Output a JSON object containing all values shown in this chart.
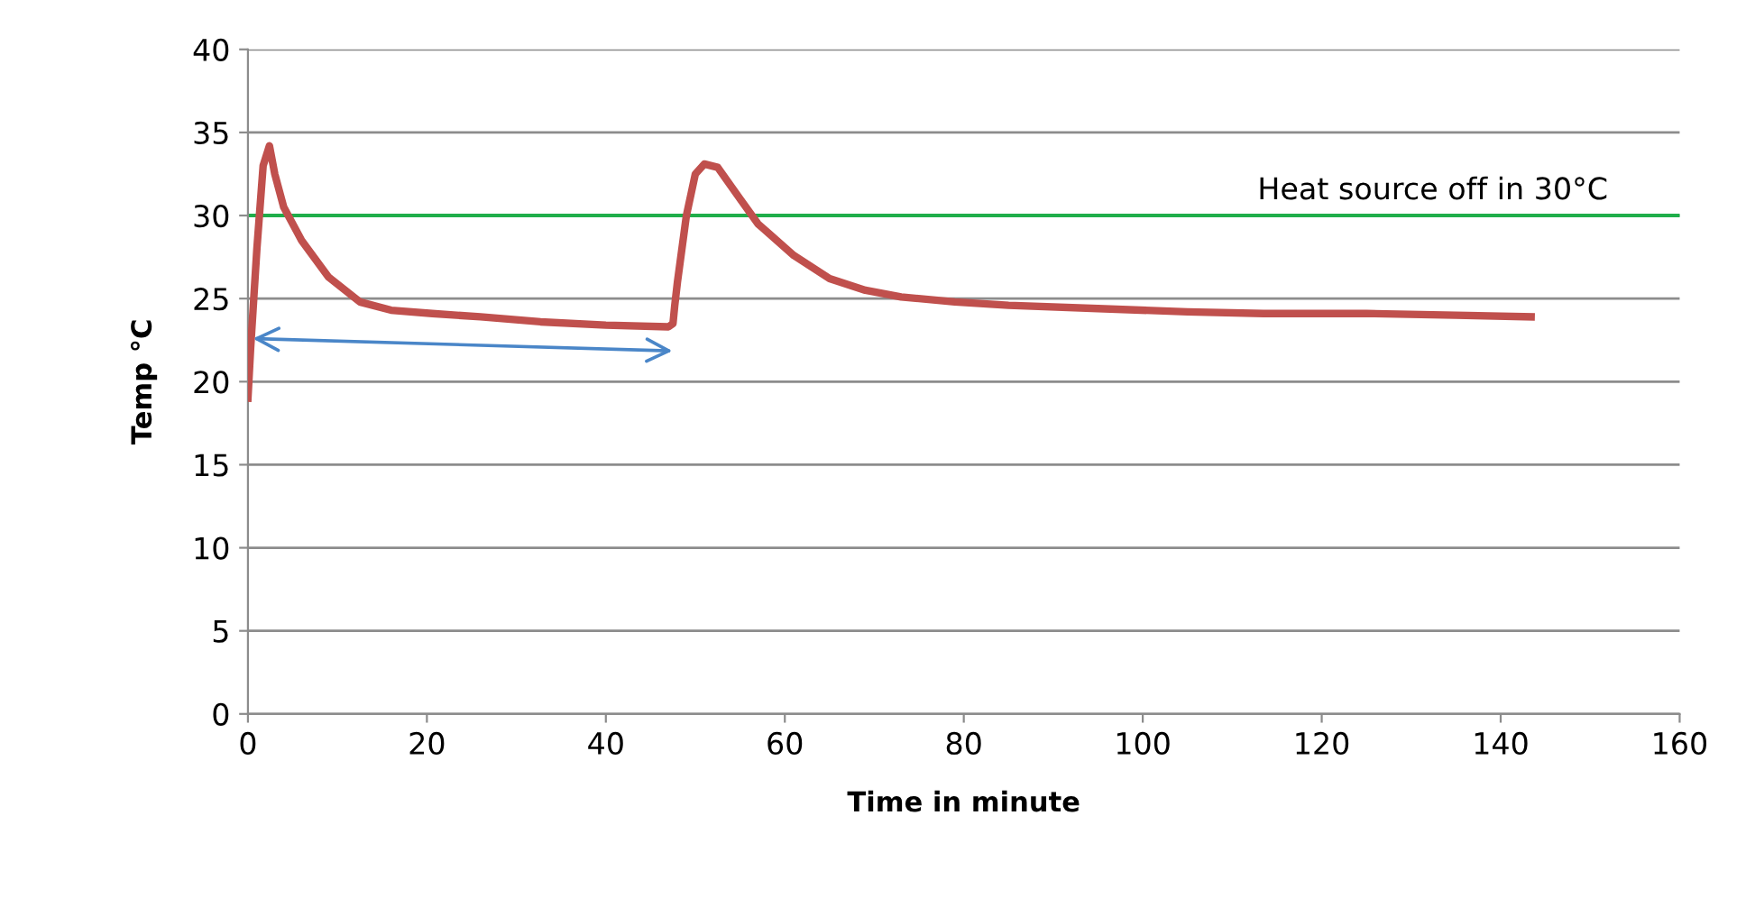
{
  "chart_data": {
    "type": "line",
    "xlabel": "Time in minute",
    "ylabel": "Temp °C",
    "series": [
      {
        "color": "#c0504d",
        "x": [
          0,
          0.3,
          1,
          1.7,
          2.4,
          3,
          4,
          6,
          9,
          12.5,
          16,
          20.6,
          26,
          32.7,
          40,
          47,
          47.5,
          47.7,
          48,
          49,
          50,
          51,
          52.5,
          55,
          57,
          61,
          65,
          69,
          73,
          79,
          85,
          95,
          105,
          113.5,
          125,
          135,
          143.4
        ],
        "values": [
          19,
          22,
          28,
          33,
          34.2,
          32.5,
          30.5,
          28.5,
          26.3,
          24.8,
          24.3,
          24.1,
          23.9,
          23.6,
          23.4,
          23.3,
          23.5,
          24.6,
          26,
          30,
          32.5,
          33.1,
          32.9,
          31,
          29.5,
          27.6,
          26.2,
          25.5,
          25.1,
          24.8,
          24.6,
          24.4,
          24.2,
          24.1,
          24.1,
          24,
          23.9
        ]
      }
    ],
    "xlim": [
      0,
      160
    ],
    "xticks": [
      0,
      20,
      40,
      60,
      80,
      100,
      120,
      140,
      160
    ],
    "ylim": [
      0,
      40
    ],
    "yticks": [
      0,
      5,
      10,
      15,
      20,
      25,
      30,
      35,
      40
    ],
    "grid": "y",
    "marker": "none",
    "line_style": "solid",
    "ref_lines": [
      {
        "axis": "y",
        "value": 30,
        "label": "Heat source off in 30°C",
        "color": "#1fae4a",
        "line_style": "solid"
      }
    ]
  }
}
